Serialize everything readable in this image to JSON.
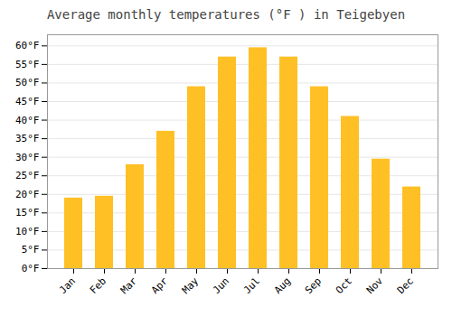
{
  "chart_data": {
    "type": "bar",
    "title": "Average monthly temperatures (°F ) in Teigebyen",
    "categories": [
      "Jan",
      "Feb",
      "Mar",
      "Apr",
      "May",
      "Jun",
      "Jul",
      "Aug",
      "Sep",
      "Oct",
      "Nov",
      "Dec"
    ],
    "values": [
      19,
      19.5,
      28,
      37,
      49,
      57,
      59.5,
      57,
      49,
      41,
      29.5,
      22
    ],
    "color": "#FFC026",
    "ylim": [
      0,
      63
    ],
    "yticks": [
      {
        "value": 0,
        "label": "0°F"
      },
      {
        "value": 5,
        "label": "5°F"
      },
      {
        "value": 10,
        "label": "10°F"
      },
      {
        "value": 15,
        "label": "15°F"
      },
      {
        "value": 20,
        "label": "20°F"
      },
      {
        "value": 25,
        "label": "25°F"
      },
      {
        "value": 30,
        "label": "30°F"
      },
      {
        "value": 35,
        "label": "35°F"
      },
      {
        "value": 40,
        "label": "40°F"
      },
      {
        "value": 45,
        "label": "45°F"
      },
      {
        "value": 50,
        "label": "50°F"
      },
      {
        "value": 55,
        "label": "55°F"
      },
      {
        "value": 60,
        "label": "60°F"
      }
    ],
    "grid": true
  }
}
